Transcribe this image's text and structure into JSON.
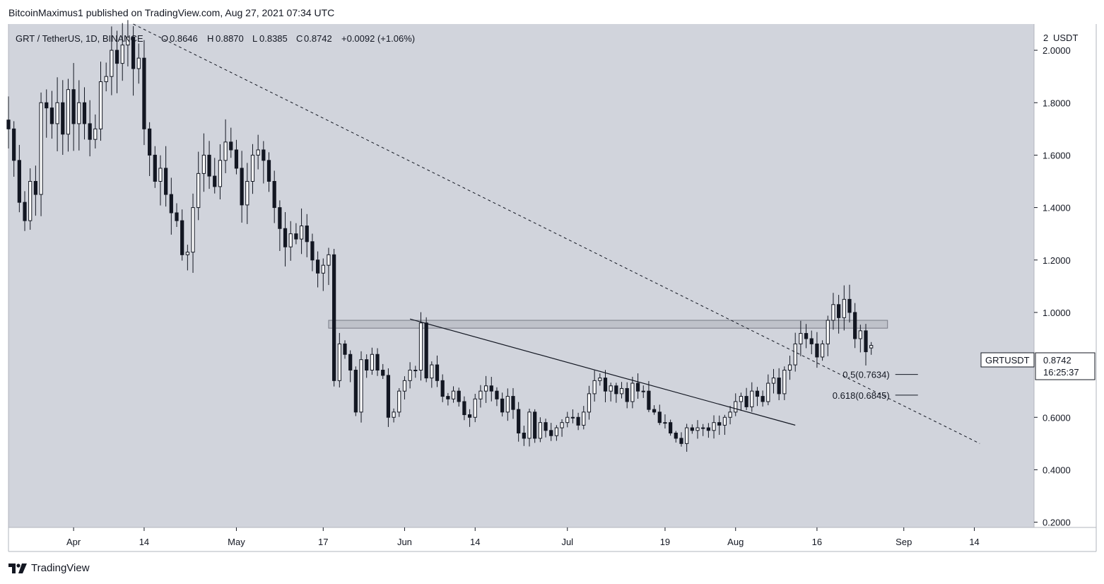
{
  "header": {
    "publisher_line": "BitcoinMaximus1 published on TradingView.com, Aug 27, 2021 07:34 UTC"
  },
  "legend": {
    "symbol": "GRT / TetherUS, 1D, BINANCE",
    "open_label": "O",
    "open": "0.8646",
    "high_label": "H",
    "high": "0.8870",
    "low_label": "L",
    "low": "0.8385",
    "close_label": "C",
    "close": "0.8742",
    "change": "+0.0092 (+1.06%)"
  },
  "price_axis": {
    "currency": "USDT",
    "top_label": "2"
  },
  "price_tag": {
    "symbol": "GRTUSDT",
    "price": "0.8742",
    "countdown": "16:25:37"
  },
  "footer": {
    "brand": "TradingView"
  },
  "colors": {
    "plot_bg": "#d1d4dc",
    "candle_up": "#ffffff",
    "candle_down": "#131722",
    "line": "#131722",
    "zone_fill": "#b2b5be"
  },
  "chart_data": {
    "type": "candlestick",
    "timeframe": "1D",
    "ylim": [
      0.18,
      2.1
    ],
    "xlim": [
      "2021-03-20",
      "2021-09-25"
    ],
    "y_ticks": [
      "2.0000",
      "1.8000",
      "1.6000",
      "1.4000",
      "1.2000",
      "1.0000",
      "0.6000",
      "0.4000",
      "0.2000"
    ],
    "x_ticks": [
      {
        "label": "Apr",
        "date": "2021-04-01"
      },
      {
        "label": "14",
        "date": "2021-04-14"
      },
      {
        "label": "May",
        "date": "2021-05-01"
      },
      {
        "label": "17",
        "date": "2021-05-17"
      },
      {
        "label": "Jun",
        "date": "2021-06-01"
      },
      {
        "label": "14",
        "date": "2021-06-14"
      },
      {
        "label": "Jul",
        "date": "2021-07-01"
      },
      {
        "label": "19",
        "date": "2021-07-19"
      },
      {
        "label": "Aug",
        "date": "2021-08-01"
      },
      {
        "label": "16",
        "date": "2021-08-16"
      },
      {
        "label": "Sep",
        "date": "2021-09-01"
      },
      {
        "label": "14",
        "date": "2021-09-14"
      }
    ],
    "first_candle_date": "2021-03-20",
    "closes": [
      1.7,
      1.58,
      1.42,
      1.35,
      1.5,
      1.45,
      1.8,
      1.78,
      1.72,
      1.8,
      1.68,
      1.85,
      1.72,
      1.8,
      1.72,
      1.66,
      1.7,
      1.88,
      1.9,
      2.0,
      1.95,
      2.02,
      2.05,
      1.93,
      1.97,
      1.7,
      1.6,
      1.5,
      1.55,
      1.45,
      1.38,
      1.35,
      1.22,
      1.23,
      1.4,
      1.53,
      1.6,
      1.52,
      1.48,
      1.58,
      1.65,
      1.62,
      1.55,
      1.41,
      1.5,
      1.6,
      1.62,
      1.58,
      1.5,
      1.4,
      1.32,
      1.25,
      1.3,
      1.28,
      1.33,
      1.27,
      1.2,
      1.15,
      1.18,
      1.22,
      0.74,
      0.88,
      0.84,
      0.78,
      0.62,
      0.82,
      0.78,
      0.84,
      0.78,
      0.76,
      0.6,
      0.62,
      0.7,
      0.74,
      0.78,
      0.78,
      0.96,
      0.75,
      0.8,
      0.74,
      0.68,
      0.67,
      0.7,
      0.66,
      0.61,
      0.6,
      0.67,
      0.7,
      0.72,
      0.7,
      0.67,
      0.62,
      0.68,
      0.63,
      0.54,
      0.52,
      0.62,
      0.52,
      0.58,
      0.55,
      0.53,
      0.56,
      0.58,
      0.6,
      0.6,
      0.57,
      0.62,
      0.69,
      0.74,
      0.75,
      0.7,
      0.72,
      0.69,
      0.71,
      0.66,
      0.73,
      0.7,
      0.7,
      0.63,
      0.62,
      0.58,
      0.58,
      0.54,
      0.52,
      0.5,
      0.56,
      0.55,
      0.56,
      0.56,
      0.55,
      0.58,
      0.57,
      0.6,
      0.62,
      0.66,
      0.68,
      0.64,
      0.7,
      0.68,
      0.66,
      0.73,
      0.75,
      0.69,
      0.78,
      0.8,
      0.88,
      0.92,
      0.9,
      0.88,
      0.83,
      0.88,
      0.97,
      1.03,
      0.98,
      1.05,
      1.0,
      0.9,
      0.93,
      0.85,
      0.8742
    ],
    "annotations": {
      "descending_trendline": [
        [
          "2021-04-12",
          2.1
        ],
        [
          "2021-09-15",
          0.5
        ]
      ],
      "resistance_line": [
        [
          "2021-06-02",
          0.975
        ],
        [
          "2021-08-12",
          0.57
        ]
      ],
      "horizontal_zone": [
        0.94,
        0.97
      ],
      "fib_levels": [
        {
          "label": "0.5(0.7634)",
          "value": 0.7634
        },
        {
          "label": "0.618(0.6845)",
          "value": 0.6845
        }
      ]
    }
  }
}
